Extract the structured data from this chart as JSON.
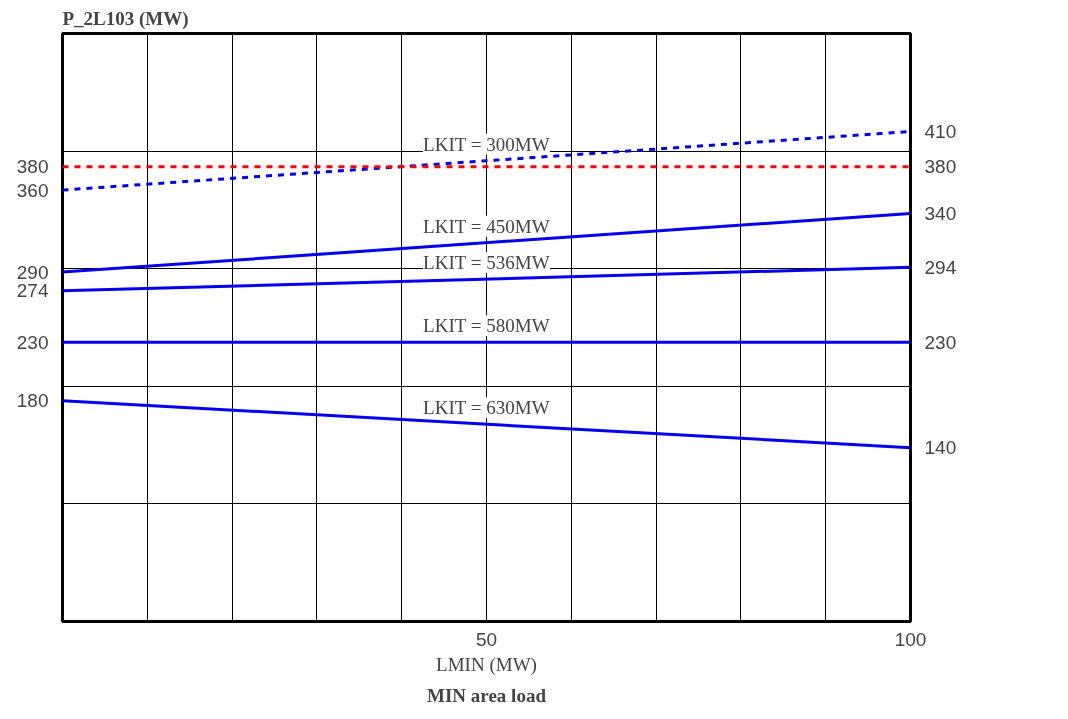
{
  "chart_data": {
    "type": "line",
    "xlabel": "LMIN (MW)",
    "annotations": [
      "P_2L103 (MW)",
      "MIN area load"
    ],
    "x": [
      0,
      100
    ],
    "xlim": [
      0,
      100
    ],
    "xticks": [
      {
        "value": 0,
        "label": null
      },
      {
        "value": 10,
        "label": null
      },
      {
        "value": 20,
        "label": null
      },
      {
        "value": 30,
        "label": null
      },
      {
        "value": 40,
        "label": null
      },
      50,
      {
        "value": 60,
        "label": null
      },
      {
        "value": 70,
        "label": null
      },
      {
        "value": 80,
        "label": null
      },
      {
        "value": 90,
        "label": null
      },
      100
    ],
    "tick_labels": "x",
    "grid": true,
    "data_labels": true,
    "series": [
      {
        "name": "LKIT = 300MW",
        "color": "#0000ee",
        "values": [
          360,
          410
        ],
        "line_style": "dashed"
      },
      {
        "color": "#ff0000",
        "values": [
          380,
          380
        ],
        "line_style": "dashed"
      },
      {
        "name": "LKIT = 450MW",
        "color": "#0000ee",
        "values": [
          290,
          340
        ],
        "line_style": "solid"
      },
      {
        "name": "LKIT = 536MW",
        "color": "#0000ee",
        "values": [
          274,
          294
        ],
        "line_style": "solid"
      },
      {
        "name": "LKIT = 580MW",
        "color": "#0000ee",
        "values": [
          230,
          230
        ],
        "line_style": "solid"
      },
      {
        "name": "LKIT = 630MW",
        "color": "#0000ee",
        "values": [
          180,
          140
        ],
        "line_style": "solid"
      }
    ]
  }
}
